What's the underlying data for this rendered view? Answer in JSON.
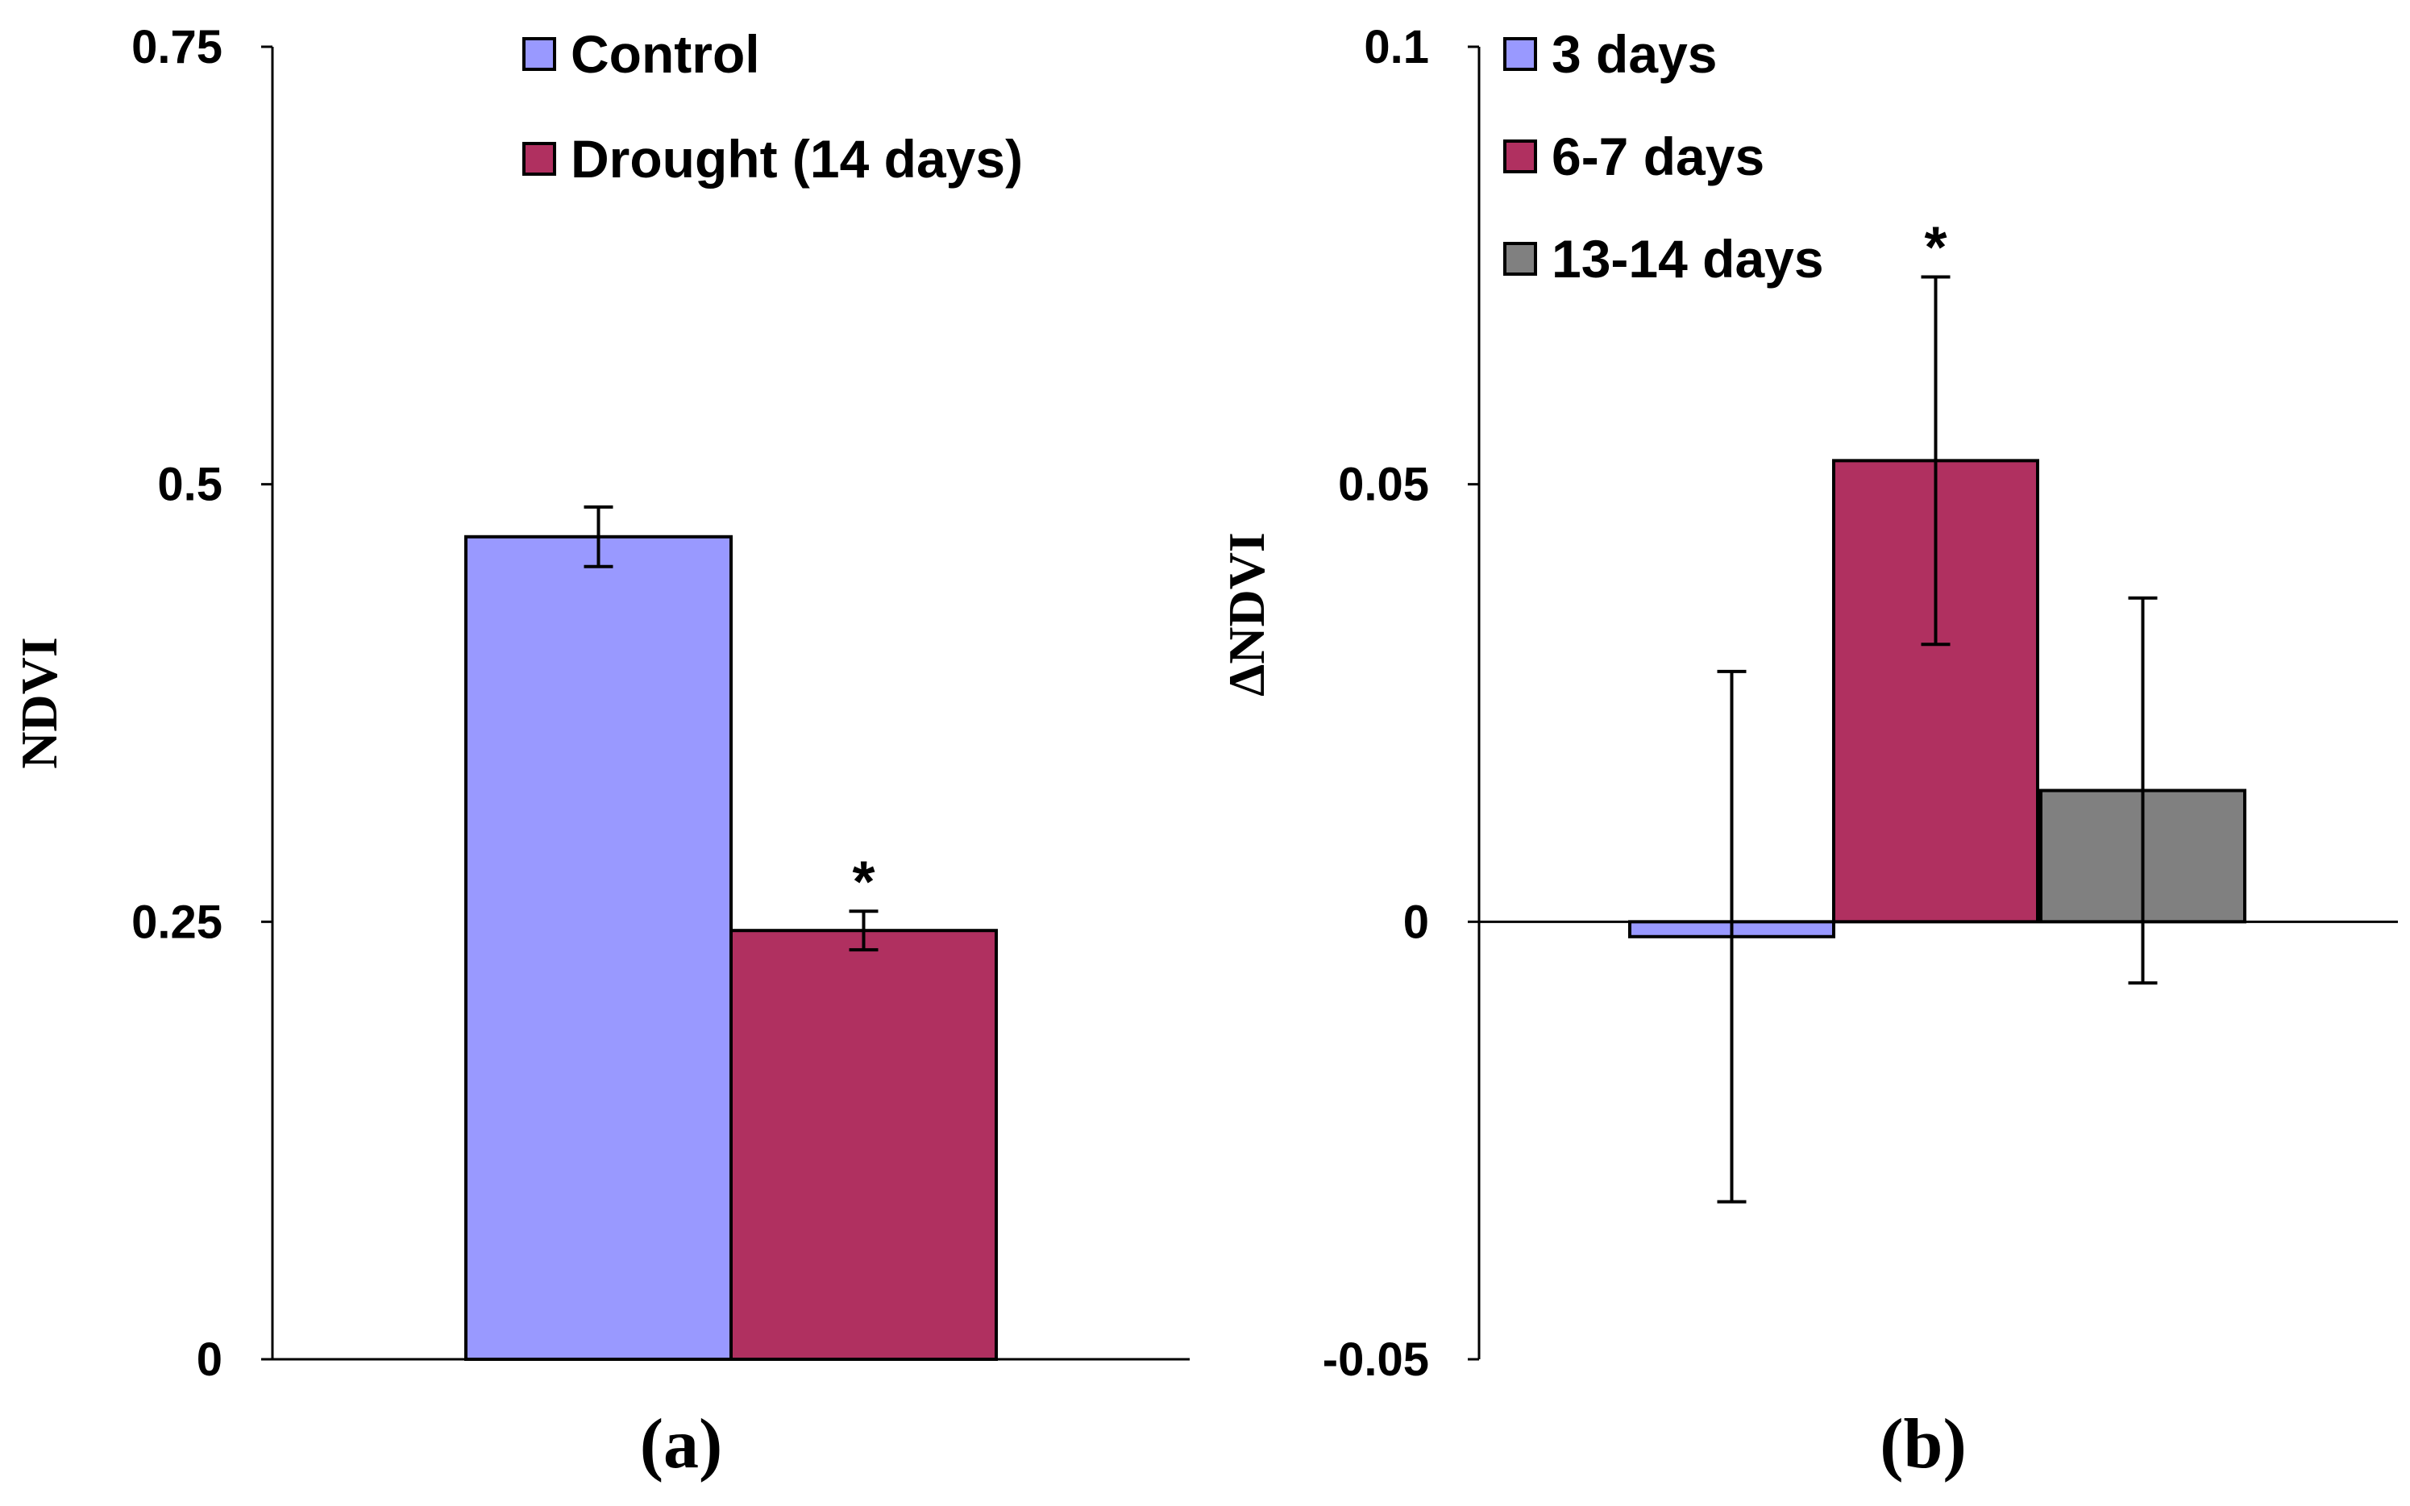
{
  "chart_data": [
    {
      "type": "bar",
      "panel_label": "(a)",
      "title": "",
      "xlabel": "",
      "ylabel": "NDVI",
      "ylim": [
        0,
        0.75
      ],
      "yticks": [
        {
          "value": 0,
          "label": "0"
        },
        {
          "value": 0.25,
          "label": "0.25"
        },
        {
          "value": 0.5,
          "label": "0.5"
        },
        {
          "value": 0.75,
          "label": "0.75"
        }
      ],
      "legend_position": "top",
      "series": [
        {
          "name": "Control",
          "color": "#9999ff",
          "value": 0.47,
          "error": 0.017,
          "annotation": ""
        },
        {
          "name": "Drought (14 days)",
          "color": "#b03060",
          "value": 0.245,
          "error": 0.011,
          "annotation": "*"
        }
      ]
    },
    {
      "type": "bar",
      "panel_label": "(b)",
      "title": "",
      "xlabel": "",
      "ylabel": "ΔNDVI",
      "ylim": [
        -0.05,
        0.1
      ],
      "yticks": [
        {
          "value": -0.05,
          "label": "-0.05"
        },
        {
          "value": 0,
          "label": "0"
        },
        {
          "value": 0.05,
          "label": "0.05"
        },
        {
          "value": 0.1,
          "label": "0.1"
        }
      ],
      "legend_position": "top-left",
      "series": [
        {
          "name": "3 days",
          "color": "#9999ff",
          "value": -0.0017,
          "error": 0.0303,
          "annotation": ""
        },
        {
          "name": "6-7 days",
          "color": "#b03060",
          "value": 0.0527,
          "error": 0.021,
          "annotation": "*"
        },
        {
          "name": "13-14 days",
          "color": "#808080",
          "value": 0.015,
          "error": 0.022,
          "annotation": ""
        }
      ]
    }
  ]
}
